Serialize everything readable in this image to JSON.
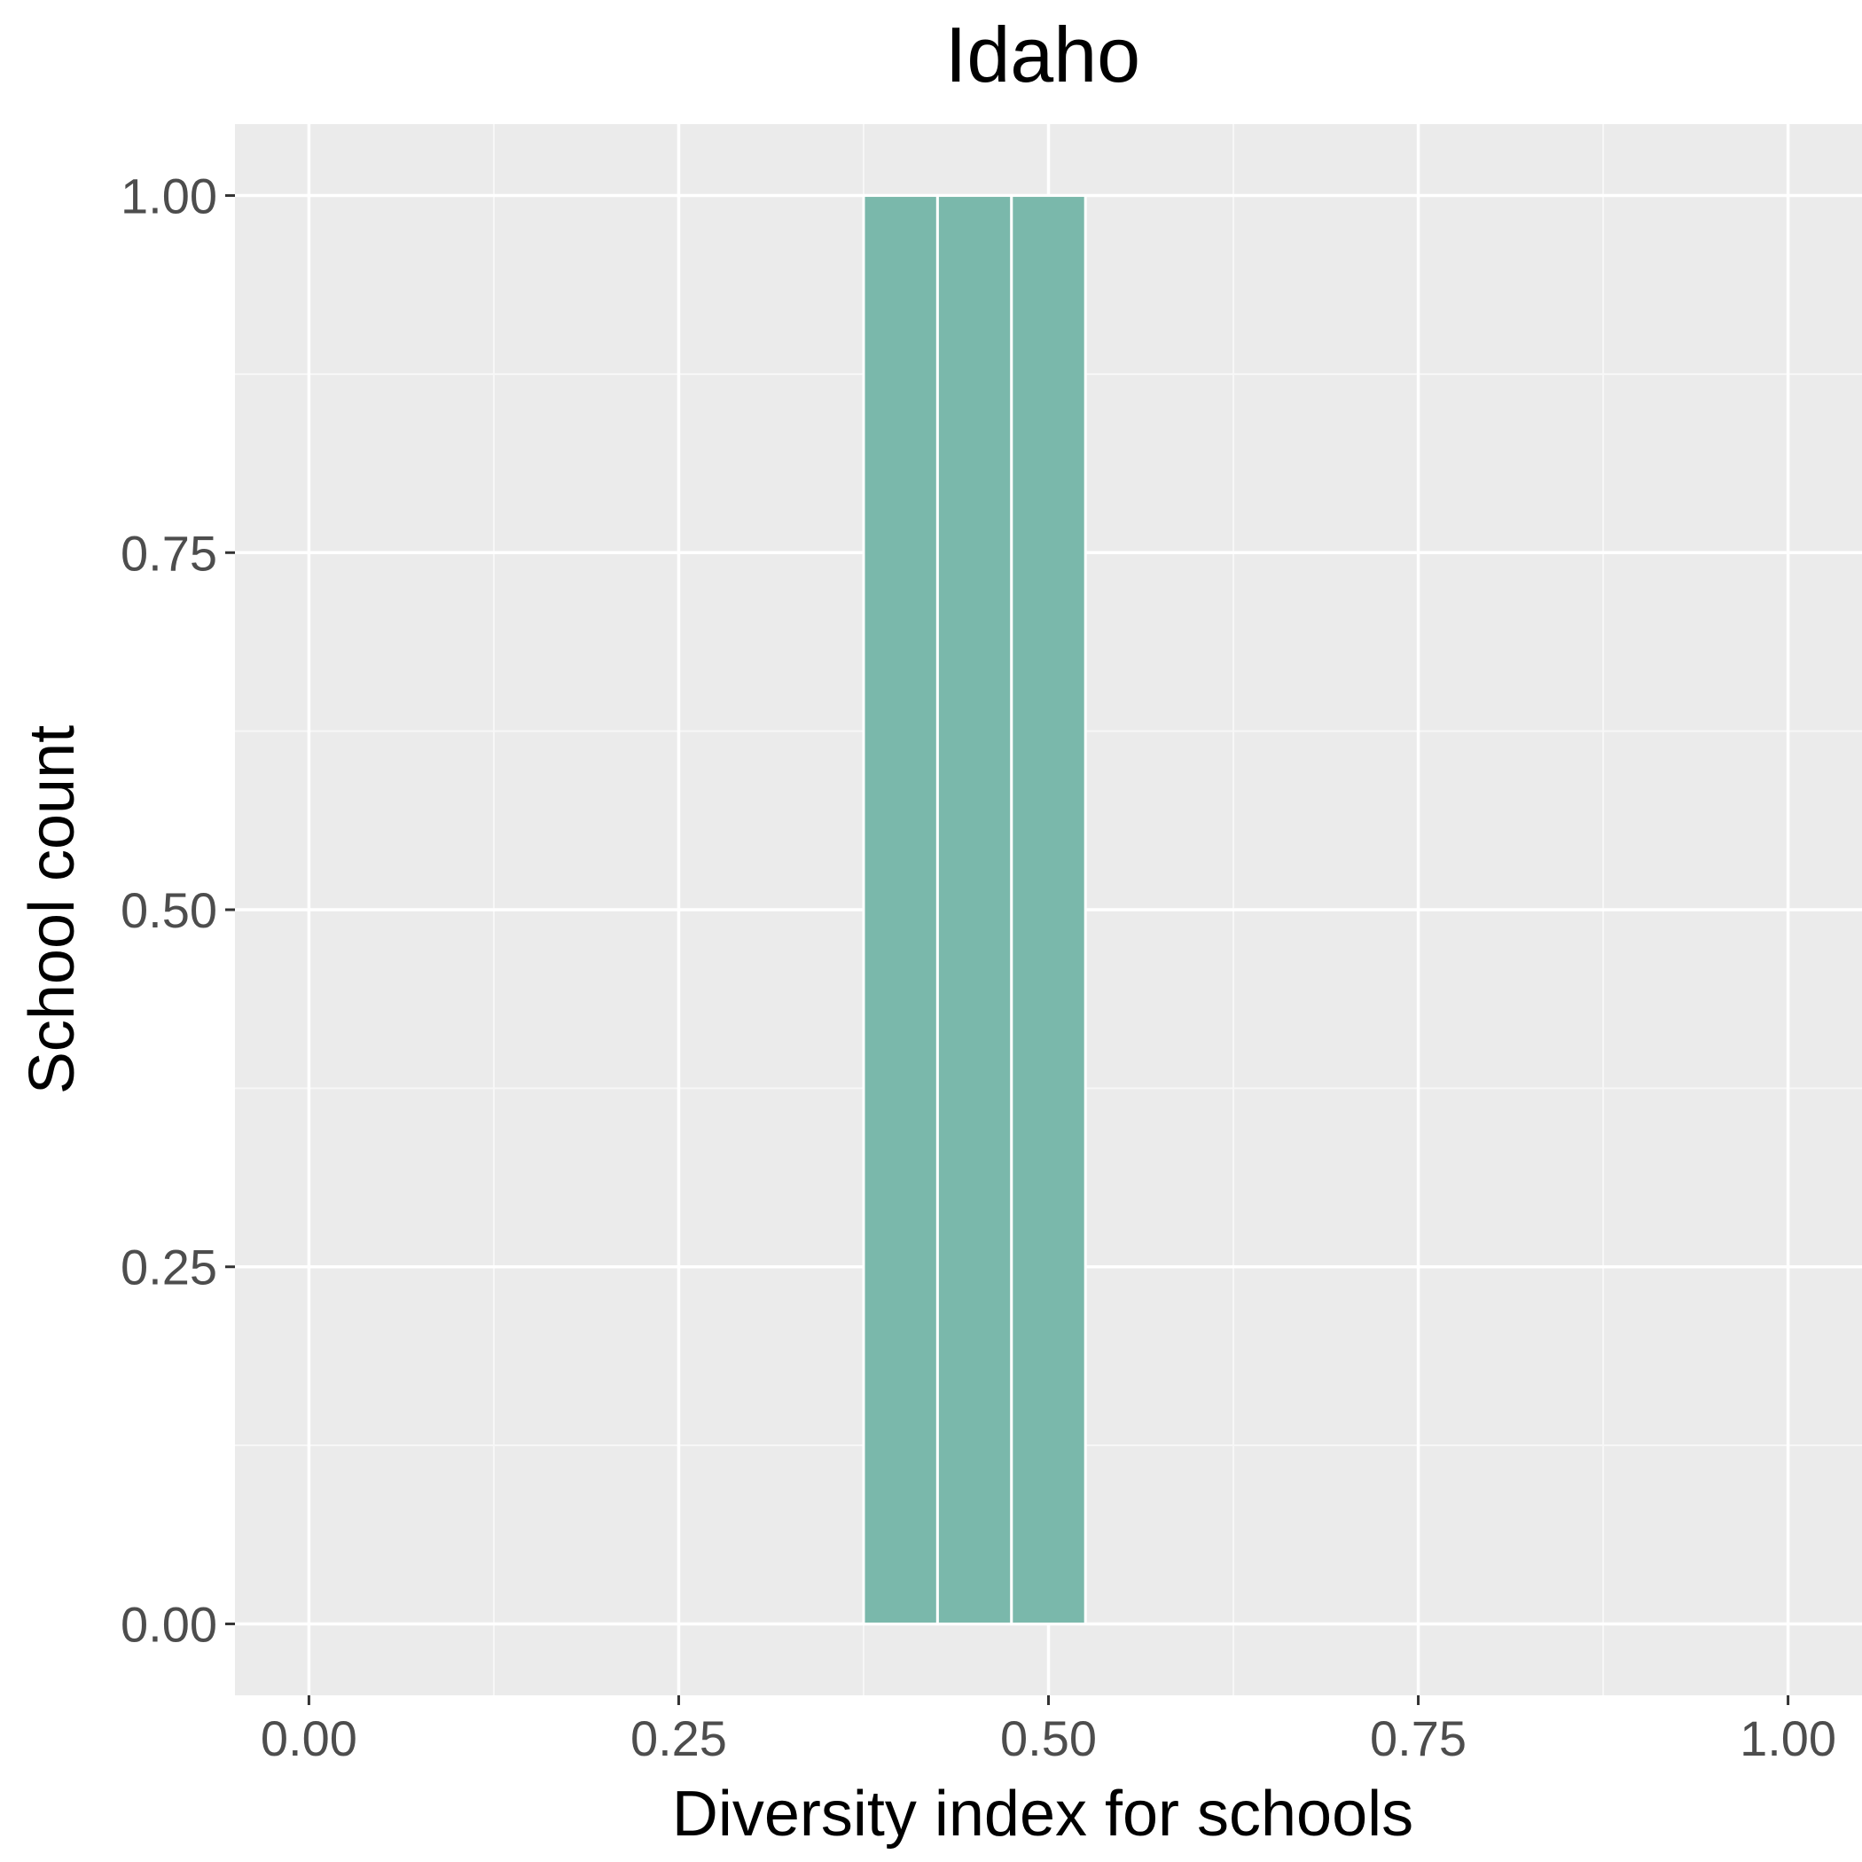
{
  "chart_data": {
    "type": "bar",
    "title": "Idaho",
    "xlabel": "Diversity index for schools",
    "ylabel": "School count",
    "xlim": [
      -0.05,
      1.05
    ],
    "ylim": [
      -0.05,
      1.05
    ],
    "x_ticks": [
      0,
      0.25,
      0.5,
      0.75,
      1
    ],
    "x_tick_labels": [
      "0.00",
      "0.25",
      "0.50",
      "0.75",
      "1.00"
    ],
    "y_ticks": [
      0,
      0.25,
      0.5,
      0.75,
      1
    ],
    "y_tick_labels": [
      "0.00",
      "0.25",
      "0.50",
      "0.75",
      "1.00"
    ],
    "bin_width": 0.05,
    "bins": [
      {
        "x": 0.4,
        "count": 1
      },
      {
        "x": 0.45,
        "count": 1
      },
      {
        "x": 0.5,
        "count": 1
      }
    ],
    "grid": true,
    "legend": "none",
    "colors": {
      "bar_fill": "#7ab8ab",
      "panel_background": "#ebebeb",
      "grid_major": "#ffffff",
      "grid_minor": "#f7f7f7",
      "tick_label": "#4d4d4d"
    }
  }
}
